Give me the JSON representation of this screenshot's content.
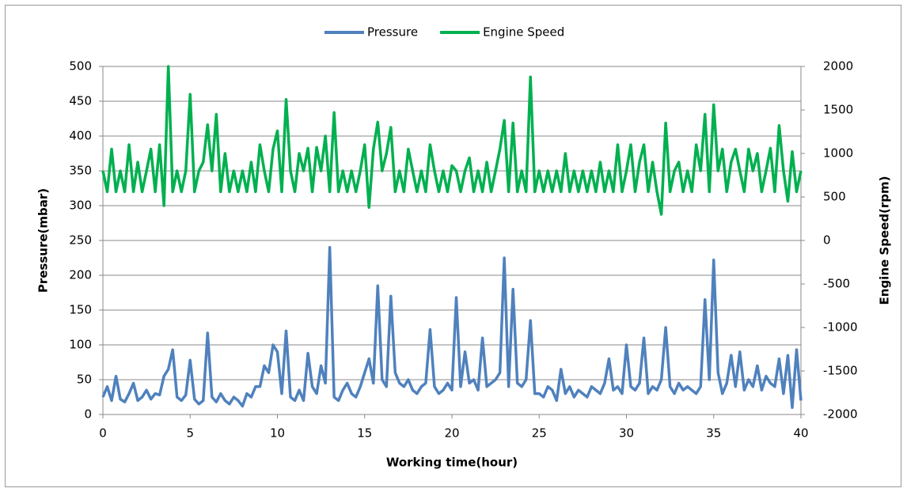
{
  "chart_data": {
    "type": "line",
    "x_label": "Working time(hour)",
    "y_label": "Pressure(mbar)",
    "y2_label": "Engine Speed(rpm)",
    "legend": "top",
    "grid": true,
    "xlim": [
      0,
      40
    ],
    "xticks": [
      0,
      5,
      10,
      15,
      20,
      25,
      30,
      35,
      40
    ],
    "ylim": [
      0,
      500
    ],
    "yticks": [
      0,
      50,
      100,
      150,
      200,
      250,
      300,
      350,
      400,
      450,
      500
    ],
    "y2lim": [
      -2000,
      2000
    ],
    "y2ticks": [
      -2000,
      -1500,
      -1000,
      -500,
      0,
      500,
      1000,
      1500,
      2000
    ],
    "x": [
      0,
      0.25,
      0.5,
      0.75,
      1,
      1.25,
      1.5,
      1.75,
      2,
      2.25,
      2.5,
      2.75,
      3,
      3.25,
      3.5,
      3.75,
      4,
      4.25,
      4.5,
      4.75,
      5,
      5.25,
      5.5,
      5.75,
      6,
      6.25,
      6.5,
      6.75,
      7,
      7.25,
      7.5,
      7.75,
      8,
      8.25,
      8.5,
      8.75,
      9,
      9.25,
      9.5,
      9.75,
      10,
      10.25,
      10.5,
      10.75,
      11,
      11.25,
      11.5,
      11.75,
      12,
      12.25,
      12.5,
      12.75,
      13,
      13.25,
      13.5,
      13.75,
      14,
      14.25,
      14.5,
      14.75,
      15,
      15.25,
      15.5,
      15.75,
      16,
      16.25,
      16.5,
      16.75,
      17,
      17.25,
      17.5,
      17.75,
      18,
      18.25,
      18.5,
      18.75,
      19,
      19.25,
      19.5,
      19.75,
      20,
      20.25,
      20.5,
      20.75,
      21,
      21.25,
      21.5,
      21.75,
      22,
      22.25,
      22.5,
      22.75,
      23,
      23.25,
      23.5,
      23.75,
      24,
      24.25,
      24.5,
      24.75,
      25,
      25.25,
      25.5,
      25.75,
      26,
      26.25,
      26.5,
      26.75,
      27,
      27.25,
      27.5,
      27.75,
      28,
      28.25,
      28.5,
      28.75,
      29,
      29.25,
      29.5,
      29.75,
      30,
      30.25,
      30.5,
      30.75,
      31,
      31.25,
      31.5,
      31.75,
      32,
      32.25,
      32.5,
      32.75,
      33,
      33.25,
      33.5,
      33.75,
      34,
      34.25,
      34.5,
      34.75,
      35,
      35.25,
      35.5,
      35.75,
      36,
      36.25,
      36.5,
      36.75,
      37,
      37.25,
      37.5,
      37.75,
      38,
      38.25,
      38.5,
      38.75,
      39,
      39.25,
      39.5,
      39.75,
      40
    ],
    "series": [
      {
        "name": "Pressure",
        "color": "#4f81bd",
        "values": [
          25,
          40,
          20,
          55,
          22,
          18,
          30,
          45,
          20,
          25,
          35,
          22,
          30,
          28,
          55,
          65,
          93,
          25,
          20,
          28,
          78,
          22,
          15,
          20,
          117,
          25,
          18,
          30,
          20,
          15,
          25,
          20,
          12,
          30,
          25,
          40,
          40,
          70,
          60,
          100,
          90,
          30,
          120,
          25,
          20,
          35,
          20,
          88,
          40,
          30,
          70,
          45,
          240,
          25,
          20,
          35,
          45,
          30,
          25,
          40,
          60,
          80,
          45,
          185,
          50,
          40,
          170,
          60,
          45,
          40,
          50,
          35,
          30,
          40,
          45,
          122,
          40,
          30,
          35,
          45,
          35,
          168,
          40,
          90,
          45,
          50,
          35,
          110,
          40,
          45,
          50,
          60,
          225,
          40,
          180,
          45,
          40,
          50,
          135,
          30,
          30,
          25,
          40,
          35,
          20,
          65,
          30,
          40,
          25,
          35,
          30,
          25,
          40,
          35,
          30,
          45,
          80,
          35,
          40,
          30,
          100,
          40,
          35,
          45,
          110,
          30,
          40,
          35,
          50,
          125,
          40,
          30,
          45,
          35,
          40,
          35,
          30,
          40,
          165,
          50,
          222,
          60,
          30,
          45,
          85,
          40,
          90,
          35,
          50,
          40,
          70,
          35,
          55,
          45,
          40,
          80,
          30,
          85,
          10,
          93,
          20
        ]
      },
      {
        "name": "Engine Speed",
        "color": "#00b050",
        "axis": "y2",
        "values": [
          800,
          560,
          1050,
          560,
          800,
          560,
          1100,
          560,
          900,
          560,
          800,
          1050,
          560,
          1100,
          400,
          2000,
          560,
          800,
          560,
          800,
          1680,
          560,
          800,
          900,
          1330,
          800,
          1450,
          560,
          1000,
          560,
          800,
          560,
          800,
          560,
          900,
          560,
          1100,
          800,
          560,
          1050,
          1260,
          560,
          1620,
          800,
          560,
          1000,
          800,
          1060,
          560,
          1070,
          800,
          1200,
          560,
          1470,
          560,
          800,
          560,
          800,
          560,
          800,
          1100,
          380,
          1050,
          1360,
          800,
          1000,
          1300,
          560,
          800,
          560,
          1050,
          800,
          560,
          800,
          560,
          1100,
          800,
          560,
          800,
          560,
          860,
          800,
          560,
          800,
          950,
          560,
          800,
          560,
          900,
          560,
          800,
          1050,
          1380,
          560,
          1350,
          560,
          800,
          560,
          1880,
          560,
          800,
          560,
          800,
          560,
          800,
          560,
          1000,
          560,
          800,
          560,
          800,
          560,
          800,
          560,
          900,
          560,
          800,
          560,
          1100,
          560,
          800,
          1100,
          560,
          900,
          1100,
          560,
          900,
          560,
          300,
          1350,
          560,
          800,
          900,
          560,
          800,
          560,
          1100,
          800,
          1450,
          560,
          1560,
          800,
          1050,
          560,
          900,
          1050,
          800,
          560,
          1050,
          800,
          1000,
          560,
          800,
          1060,
          560,
          1320,
          800,
          450,
          1020,
          560,
          800
        ]
      }
    ]
  }
}
